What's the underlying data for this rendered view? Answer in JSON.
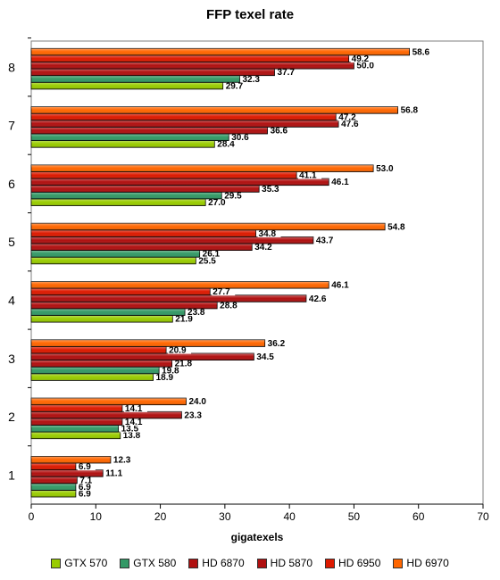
{
  "chart_data": {
    "type": "bar",
    "orientation": "horizontal",
    "title": "FFP texel rate",
    "xlabel": "gigatexels",
    "ylabel": "",
    "xlim": [
      0,
      70
    ],
    "xticks": [
      0,
      10,
      20,
      30,
      40,
      50,
      60,
      70
    ],
    "grid": false,
    "legend_position": "bottom",
    "categories": [
      "1",
      "2",
      "3",
      "4",
      "5",
      "6",
      "7",
      "8"
    ],
    "series": [
      {
        "name": "GTX 570",
        "color": "#99cc00",
        "values": [
          6.9,
          13.8,
          18.9,
          21.9,
          25.5,
          27.0,
          28.4,
          29.7
        ]
      },
      {
        "name": "GTX 580",
        "color": "#339966",
        "values": [
          6.9,
          13.5,
          19.8,
          23.8,
          26.1,
          29.5,
          30.6,
          32.3
        ]
      },
      {
        "name": "HD 6870",
        "color": "#b01010",
        "values": [
          7.1,
          14.1,
          21.8,
          28.8,
          34.2,
          35.3,
          36.6,
          37.7
        ]
      },
      {
        "name": "HD 5870",
        "color": "#b01010",
        "values": [
          11.1,
          23.3,
          34.5,
          42.6,
          43.7,
          46.1,
          47.6,
          50.0
        ]
      },
      {
        "name": "HD 6950",
        "color": "#dd1a00",
        "values": [
          6.9,
          14.1,
          20.9,
          27.7,
          34.8,
          41.1,
          47.2,
          49.2
        ]
      },
      {
        "name": "HD 6970",
        "color": "#ff6600",
        "values": [
          12.3,
          24.0,
          36.2,
          46.1,
          54.8,
          53.0,
          56.8,
          58.6
        ]
      }
    ]
  }
}
